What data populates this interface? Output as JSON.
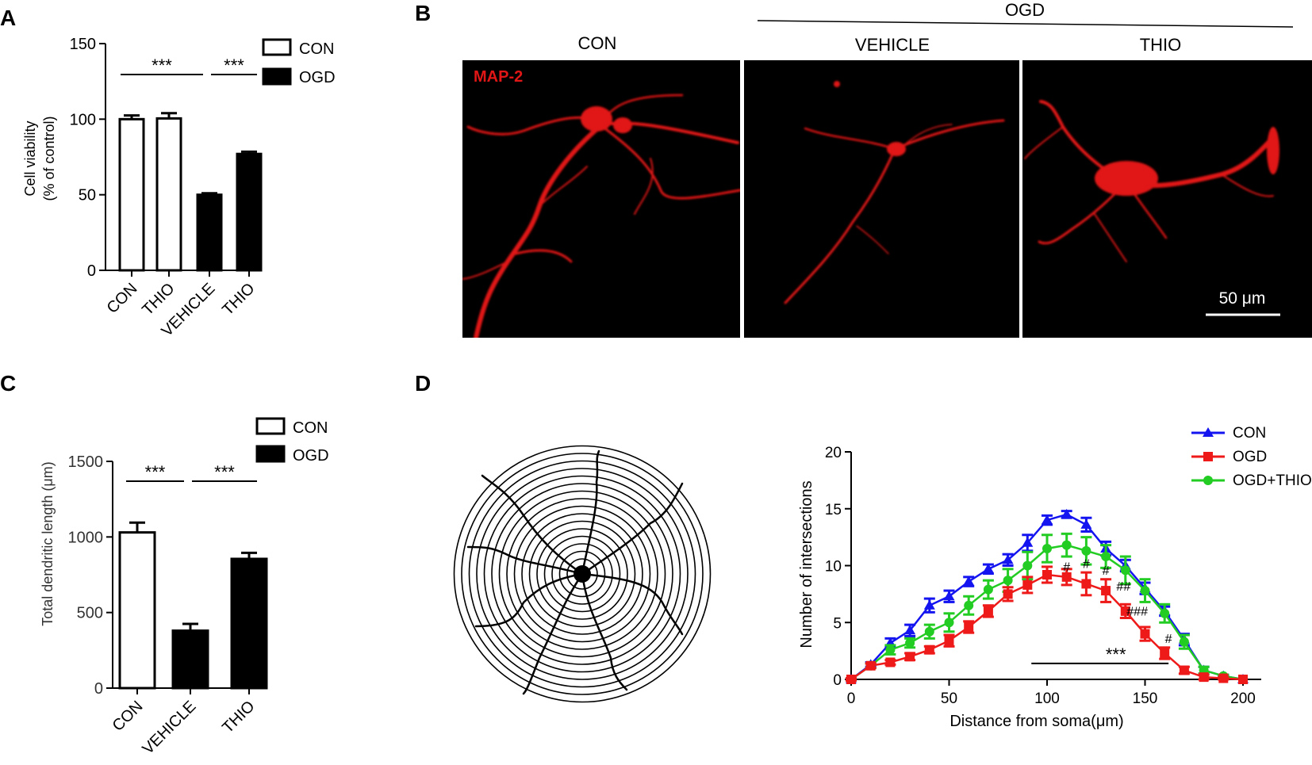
{
  "panel_letters": [
    "A",
    "B",
    "C",
    "D"
  ],
  "colors": {
    "con_line": "#1414f0",
    "ogd_line": "#ee1a1a",
    "thio_line": "#22cc22",
    "bar_open": "#ffffff",
    "bar_fill": "#000000",
    "micro_bg": "#000000",
    "micro_signal": "#e11616"
  },
  "chart_data": [
    {
      "id": "A",
      "type": "bar",
      "ylabel": "Cell viability (% of control)",
      "ylabel_lines": [
        "Cell viability",
        "(% of control)"
      ],
      "ylim": [
        0,
        150
      ],
      "yticks": [
        0,
        50,
        100,
        150
      ],
      "categories": [
        "CON",
        "THIO",
        "VEHICLE",
        "THIO"
      ],
      "values": [
        100,
        100.5,
        50,
        77
      ],
      "errors": [
        2.5,
        3.5,
        1,
        1.5
      ],
      "groups": [
        "CON",
        "CON",
        "OGD",
        "OGD"
      ],
      "legend": [
        "CON",
        "OGD"
      ],
      "legend_position": "top-right",
      "significance": [
        {
          "from": 0,
          "to": 2,
          "label": "***"
        },
        {
          "from": 2,
          "to": 3,
          "label": "***"
        }
      ]
    },
    {
      "id": "C",
      "type": "bar",
      "ylabel": "Total dendritic length (μm)",
      "ylim": [
        0,
        1500
      ],
      "yticks": [
        0,
        500,
        1000,
        1500
      ],
      "categories": [
        "CON",
        "VEHICLE",
        "THIO"
      ],
      "values": [
        1030,
        380,
        855
      ],
      "errors": [
        65,
        45,
        40
      ],
      "groups": [
        "CON",
        "OGD",
        "OGD"
      ],
      "legend": [
        "CON",
        "OGD"
      ],
      "legend_position": "top-right",
      "significance": [
        {
          "from": 0,
          "to": 1,
          "label": "***"
        },
        {
          "from": 1,
          "to": 2,
          "label": "***"
        }
      ]
    },
    {
      "id": "D",
      "type": "line",
      "xlabel": "Distance from soma(μm)",
      "ylabel": "Number of intersections",
      "xlim": [
        0,
        200
      ],
      "ylim": [
        0,
        20
      ],
      "xticks": [
        0,
        50,
        100,
        150,
        200
      ],
      "yticks": [
        0,
        5,
        10,
        15,
        20
      ],
      "x": [
        0,
        10,
        20,
        30,
        40,
        50,
        60,
        70,
        80,
        90,
        100,
        110,
        120,
        130,
        140,
        150,
        160,
        170,
        180,
        190,
        200
      ],
      "series": [
        {
          "name": "CON",
          "marker": "triangle",
          "values": [
            0,
            1.3,
            3.2,
            4.3,
            6.5,
            7.3,
            8.6,
            9.7,
            10.5,
            12.0,
            14.0,
            14.5,
            13.6,
            11.5,
            10.0,
            8.0,
            6.0,
            3.5,
            0.8,
            0.3,
            0
          ],
          "errors": [
            0.1,
            0.2,
            0.4,
            0.5,
            0.6,
            0.5,
            0.4,
            0.4,
            0.5,
            0.7,
            0.4,
            0.3,
            0.6,
            0.6,
            0.5,
            0.5,
            0.4,
            0.5,
            0.3,
            0.1,
            0
          ]
        },
        {
          "name": "OGD",
          "marker": "square",
          "values": [
            0,
            1.2,
            1.5,
            2.0,
            2.6,
            3.4,
            4.6,
            6.0,
            7.5,
            8.3,
            9.2,
            9.0,
            8.4,
            7.8,
            6.0,
            4.0,
            2.3,
            0.8,
            0.2,
            0.1,
            0
          ],
          "errors": [
            0.1,
            0.2,
            0.2,
            0.3,
            0.3,
            0.5,
            0.5,
            0.5,
            0.6,
            0.7,
            0.7,
            0.7,
            1.0,
            1.0,
            0.6,
            0.6,
            0.5,
            0.3,
            0.2,
            0.1,
            0
          ]
        },
        {
          "name": "OGD+THIO",
          "marker": "circle",
          "values": [
            0,
            1.2,
            2.6,
            3.2,
            4.2,
            5.0,
            6.5,
            7.9,
            8.7,
            10.0,
            11.5,
            11.8,
            11.3,
            10.8,
            9.6,
            7.8,
            5.8,
            3.3,
            0.8,
            0.3,
            0
          ],
          "errors": [
            0.1,
            0.2,
            0.4,
            0.4,
            0.6,
            0.8,
            0.8,
            0.8,
            1.0,
            1.2,
            1.2,
            1.0,
            1.2,
            1.0,
            1.2,
            1.0,
            0.8,
            0.6,
            0.3,
            0.1,
            0
          ]
        }
      ],
      "legend_position": "top-right",
      "annotations": [
        {
          "x": 110,
          "y": 9.5,
          "label": "#"
        },
        {
          "x": 120,
          "y": 9.8,
          "label": "#"
        },
        {
          "x": 130,
          "y": 9.2,
          "label": "#"
        },
        {
          "x": 139,
          "y": 7.8,
          "label": "##"
        },
        {
          "x": 146,
          "y": 5.6,
          "label": "###"
        },
        {
          "x": 162,
          "y": 3.2,
          "label": "#"
        }
      ],
      "significance": [
        {
          "x_from": 92,
          "x_to": 162,
          "y": 1.4,
          "label": "***"
        }
      ]
    }
  ],
  "panel_b": {
    "group_label": "OGD",
    "columns": [
      "CON",
      "VEHICLE",
      "THIO"
    ],
    "stain_label": "MAP-2",
    "scale_bar_label": "50 μm"
  }
}
